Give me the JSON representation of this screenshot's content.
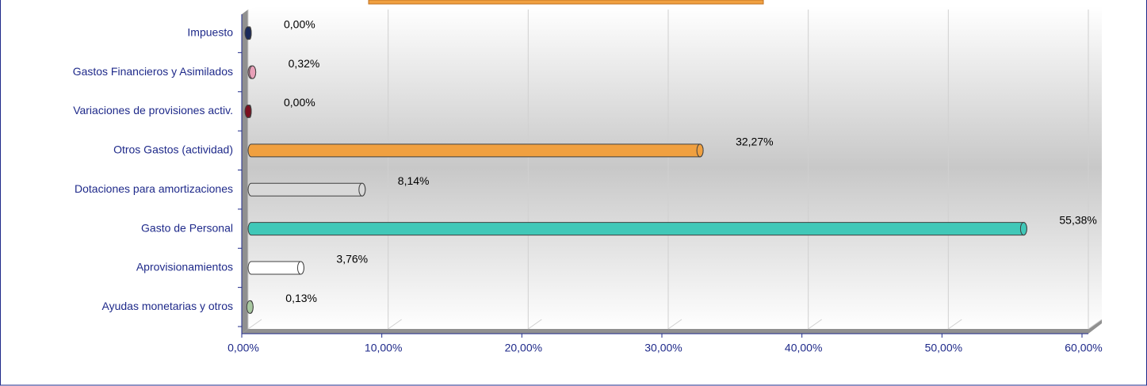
{
  "chart_data": {
    "type": "bar",
    "orientation": "horizontal",
    "categories": [
      "Impuesto",
      "Gastos Financieros y Asimilados",
      "Variaciones de provisiones activ.",
      "Otros Gastos (actividad)",
      "Dotaciones para amortizaciones",
      "Gasto de Personal",
      "Aprovisionamientos",
      "Ayudas monetarias y otros"
    ],
    "values": [
      0,
      0.32,
      0,
      32.27,
      8.14,
      55.38,
      3.76,
      0.13
    ],
    "value_labels": [
      "0,00%",
      "0,32%",
      "0,00%",
      "32,27%",
      "8,14%",
      "55,38%",
      "3,76%",
      "0,13%"
    ],
    "colors": [
      "#1a2a5a",
      "#e8a0b8",
      "#7a1020",
      "#f0a040",
      "#d8d8d8",
      "#40c8b8",
      "#ffffff",
      "#a8c8a0"
    ],
    "xlim": [
      0,
      60
    ],
    "xticks": [
      {
        "value": 0,
        "label": "0,00%"
      },
      {
        "value": 10,
        "label": "10,00%"
      },
      {
        "value": 20,
        "label": "20,00%"
      },
      {
        "value": 30,
        "label": "30,00%"
      },
      {
        "value": 40,
        "label": "40,00%"
      },
      {
        "value": 50,
        "label": "50,00%"
      },
      {
        "value": 60,
        "label": "60,00%"
      }
    ],
    "grid": true
  }
}
